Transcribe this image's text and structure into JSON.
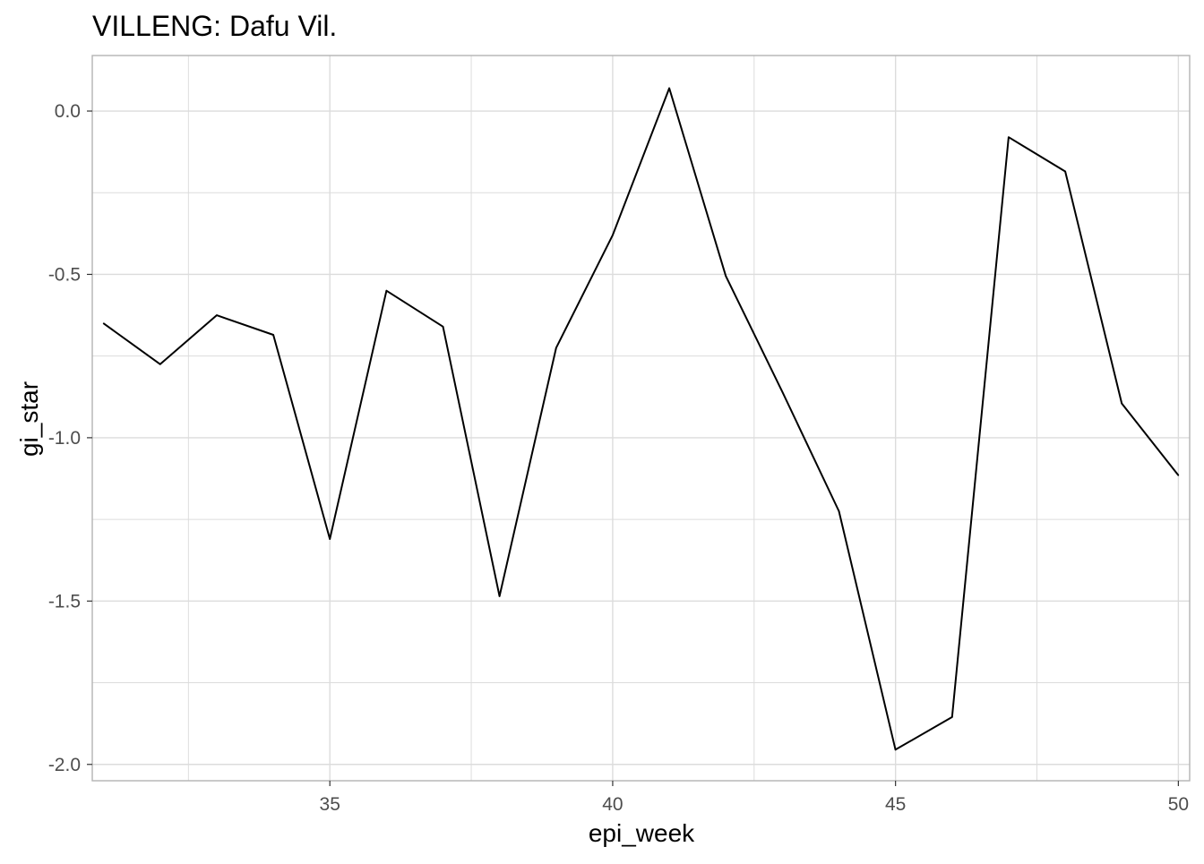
{
  "chart_data": {
    "type": "line",
    "title": "VILLENG: Dafu Vil.",
    "xlabel": "epi_week",
    "ylabel": "gi_star",
    "xlim": [
      30.8,
      50.2
    ],
    "ylim": [
      -2.05,
      0.17
    ],
    "x_ticks": [
      35,
      40,
      45,
      50
    ],
    "x_tick_labels": [
      "35",
      "40",
      "45",
      "50"
    ],
    "y_ticks": [
      0.0,
      -0.5,
      -1.0,
      -1.5,
      -2.0
    ],
    "y_tick_labels": [
      "0.0",
      "-0.5",
      "-1.0",
      "-1.5",
      "-2.0"
    ],
    "x_minor": [
      32.5,
      37.5,
      42.5,
      47.5
    ],
    "y_minor": [
      -0.25,
      -0.75,
      -1.25,
      -1.75
    ],
    "grid": true,
    "legend": "none",
    "colors": {
      "line": "#000000",
      "grid": "#dcdcdc",
      "panel_border": "#b3b3b3",
      "text": "#000000",
      "tick_text": "#4d4d4d"
    },
    "series": [
      {
        "x": [
          31,
          32,
          33,
          34,
          35,
          36,
          37,
          38,
          39,
          40,
          41,
          42,
          43,
          44,
          45,
          46,
          47,
          48,
          49,
          50
        ],
        "values": [
          -0.65,
          -0.775,
          -0.625,
          -0.685,
          -1.31,
          -0.55,
          -0.66,
          -1.485,
          -0.725,
          -0.38,
          0.07,
          -0.505,
          -0.86,
          -1.225,
          -1.955,
          -1.855,
          -0.08,
          -0.185,
          -0.895,
          -1.115
        ]
      }
    ]
  }
}
